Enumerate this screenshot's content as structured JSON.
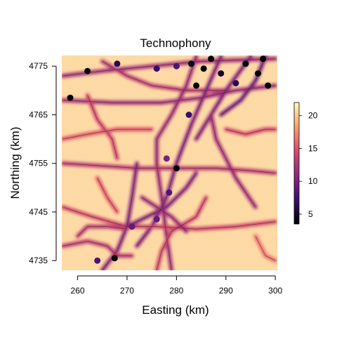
{
  "chart_data": {
    "type": "heatmap",
    "title": "Technophony",
    "xlabel": "Easting (km)",
    "ylabel": "Northing (km)",
    "xlim": [
      256.8,
      300.4
    ],
    "ylim": [
      4733.0,
      4777.2
    ],
    "x_ticks": [
      260,
      270,
      280,
      290,
      300
    ],
    "y_ticks": [
      4735,
      4745,
      4755,
      4765,
      4775
    ],
    "x_tick_labels": [
      "260",
      "270",
      "280",
      "290",
      "300"
    ],
    "y_tick_labels": [
      "4735",
      "4745",
      "4755",
      "4765",
      "4775"
    ],
    "colorbar": {
      "min": 3.5,
      "max": 22,
      "ticks": [
        5,
        10,
        15,
        20
      ],
      "tick_labels": [
        "5",
        "10",
        "15",
        "20"
      ],
      "colors": [
        "#000004",
        "#3b0f70",
        "#8c2981",
        "#de4968",
        "#fe9f6d",
        "#fcfdbf"
      ]
    },
    "background_value": 20.5,
    "roads": [
      {
        "value": 12,
        "pts": [
          [
            257,
            4768
          ],
          [
            267,
            4767.5
          ],
          [
            277,
            4767.5
          ],
          [
            285,
            4768.5
          ],
          [
            292,
            4770
          ],
          [
            300,
            4771
          ]
        ]
      },
      {
        "value": 12,
        "pts": [
          [
            257,
            4773
          ],
          [
            265,
            4774
          ],
          [
            275,
            4775
          ],
          [
            285,
            4776
          ],
          [
            300,
            4776.5
          ]
        ]
      },
      {
        "value": 13,
        "pts": [
          [
            265,
            4776
          ],
          [
            270,
            4773
          ],
          [
            275,
            4771
          ],
          [
            282,
            4770
          ],
          [
            290,
            4770
          ]
        ]
      },
      {
        "value": 12,
        "pts": [
          [
            284,
            4777
          ],
          [
            282,
            4771
          ],
          [
            279,
            4765
          ],
          [
            276,
            4760
          ],
          [
            276,
            4755
          ],
          [
            277,
            4748
          ],
          [
            278,
            4740
          ],
          [
            279,
            4733
          ]
        ]
      },
      {
        "value": 11,
        "pts": [
          [
            289,
            4777
          ],
          [
            286,
            4770
          ],
          [
            283,
            4763
          ],
          [
            280,
            4755
          ],
          [
            278,
            4748
          ],
          [
            275,
            4742
          ],
          [
            272,
            4738
          ]
        ]
      },
      {
        "value": 11,
        "pts": [
          [
            295,
            4777
          ],
          [
            290,
            4770
          ],
          [
            287,
            4765
          ],
          [
            284,
            4760
          ]
        ]
      },
      {
        "value": 10,
        "pts": [
          [
            298,
            4777
          ],
          [
            296,
            4772
          ],
          [
            293,
            4768
          ],
          [
            289,
            4765
          ]
        ]
      },
      {
        "value": 13,
        "pts": [
          [
            257,
            4755
          ],
          [
            265,
            4754.5
          ],
          [
            272,
            4754
          ],
          [
            280,
            4754
          ],
          [
            288,
            4754
          ],
          [
            295,
            4753.5
          ],
          [
            300,
            4753
          ]
        ]
      },
      {
        "value": 14,
        "pts": [
          [
            262,
            4769
          ],
          [
            264,
            4764
          ],
          [
            267,
            4760
          ],
          [
            268,
            4756
          ]
        ]
      },
      {
        "value": 14,
        "pts": [
          [
            257,
            4746
          ],
          [
            263,
            4744
          ],
          [
            270,
            4742
          ],
          [
            276,
            4742
          ],
          [
            284,
            4741.5
          ],
          [
            292,
            4742
          ],
          [
            300,
            4743
          ]
        ]
      },
      {
        "value": 11,
        "pts": [
          [
            265,
            4733
          ],
          [
            268,
            4737
          ],
          [
            270,
            4742
          ],
          [
            271,
            4748
          ],
          [
            272,
            4755
          ]
        ]
      },
      {
        "value": 11,
        "pts": [
          [
            270,
            4742
          ],
          [
            274,
            4744
          ],
          [
            278,
            4746
          ],
          [
            282,
            4750
          ],
          [
            284,
            4753
          ]
        ]
      },
      {
        "value": 13,
        "pts": [
          [
            257,
            4738
          ],
          [
            262,
            4739
          ],
          [
            266,
            4738
          ],
          [
            268,
            4736
          ],
          [
            271,
            4736
          ]
        ]
      },
      {
        "value": 14,
        "pts": [
          [
            276,
            4733
          ],
          [
            277,
            4737
          ],
          [
            279,
            4741
          ],
          [
            284,
            4744
          ],
          [
            286,
            4748
          ]
        ]
      },
      {
        "value": 12,
        "pts": [
          [
            287,
            4765
          ],
          [
            288,
            4760
          ],
          [
            290,
            4756
          ],
          [
            292,
            4752
          ],
          [
            294,
            4749
          ],
          [
            296,
            4746
          ]
        ]
      },
      {
        "value": 15,
        "pts": [
          [
            257,
            4760
          ],
          [
            262,
            4761
          ],
          [
            268,
            4762
          ],
          [
            275,
            4762
          ]
        ]
      },
      {
        "value": 14,
        "pts": [
          [
            290,
            4762
          ],
          [
            294,
            4761
          ],
          [
            298,
            4762
          ],
          [
            300,
            4762
          ]
        ]
      },
      {
        "value": 13,
        "pts": [
          [
            260,
            4740
          ],
          [
            262,
            4742
          ],
          [
            266,
            4742
          ],
          [
            270,
            4741.5
          ]
        ]
      },
      {
        "value": 12,
        "pts": [
          [
            273,
            4748
          ],
          [
            276,
            4746
          ],
          [
            279,
            4744
          ],
          [
            282,
            4741
          ]
        ]
      },
      {
        "value": 16,
        "pts": [
          [
            296,
            4740
          ],
          [
            298,
            4736
          ],
          [
            300,
            4735
          ]
        ]
      },
      {
        "value": 15,
        "pts": [
          [
            264,
            4752
          ],
          [
            266,
            4748
          ],
          [
            268,
            4745
          ]
        ]
      }
    ],
    "hotspots": [
      {
        "x": 262,
        "y": 4774,
        "value": 3.5
      },
      {
        "x": 258.5,
        "y": 4768.5,
        "value": 3.5
      },
      {
        "x": 268,
        "y": 4775.5,
        "value": 6
      },
      {
        "x": 276,
        "y": 4774.5,
        "value": 7
      },
      {
        "x": 280,
        "y": 4775,
        "value": 8
      },
      {
        "x": 283,
        "y": 4775.5,
        "value": 4
      },
      {
        "x": 285.5,
        "y": 4774.5,
        "value": 3.5
      },
      {
        "x": 287,
        "y": 4776.5,
        "value": 3.5
      },
      {
        "x": 284,
        "y": 4771,
        "value": 3.5
      },
      {
        "x": 289,
        "y": 4773.5,
        "value": 5
      },
      {
        "x": 294,
        "y": 4775.5,
        "value": 4
      },
      {
        "x": 297.5,
        "y": 4776.5,
        "value": 3.5
      },
      {
        "x": 296.5,
        "y": 4773.5,
        "value": 3.5
      },
      {
        "x": 298.5,
        "y": 4771,
        "value": 3.5
      },
      {
        "x": 292,
        "y": 4771.5,
        "value": 6
      },
      {
        "x": 282.5,
        "y": 4765,
        "value": 7
      },
      {
        "x": 280,
        "y": 4754,
        "value": 3.5
      },
      {
        "x": 278.5,
        "y": 4749,
        "value": 8
      },
      {
        "x": 276,
        "y": 4743.5,
        "value": 9
      },
      {
        "x": 271,
        "y": 4742,
        "value": 9
      },
      {
        "x": 267.5,
        "y": 4735.5,
        "value": 3.5
      },
      {
        "x": 264,
        "y": 4735,
        "value": 8
      },
      {
        "x": 278,
        "y": 4756,
        "value": 10
      }
    ]
  }
}
